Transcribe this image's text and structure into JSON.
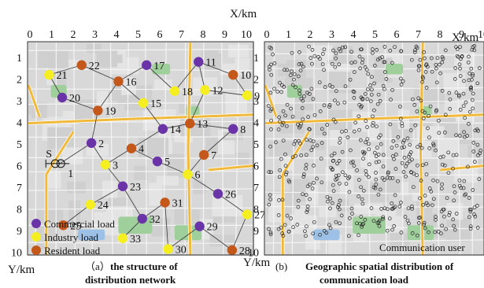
{
  "colors": {
    "commercial": "#6a34a8",
    "industry": "#f5ee21",
    "resident": "#c4571a",
    "road": "#f0b93a",
    "map_bg": "#d8d8d8",
    "block": "#e4e4e4",
    "park": "#9fcf9a",
    "water": "#9cc0e6"
  },
  "panel_a": {
    "x_axis_label": "X/km",
    "y_axis_label": "Y/km",
    "x_ticks": [
      "0",
      "1",
      "2",
      "3",
      "4",
      "5",
      "6",
      "7",
      "8",
      "9",
      "10"
    ],
    "y_ticks": [
      "1",
      "2",
      "3",
      "4",
      "5",
      "6",
      "7",
      "8",
      "9",
      "10"
    ],
    "source_label": "S",
    "legend": [
      {
        "type": "commercial",
        "label": "Commercial load"
      },
      {
        "type": "industry",
        "label": "Industry load"
      },
      {
        "type": "resident",
        "label": "Resident load"
      }
    ],
    "caption_prefix": "（a）",
    "caption_line1": "the structure of",
    "caption_line2": "distribution network",
    "nodes": [
      {
        "id": "1",
        "x": 1.1,
        "y": 5.45,
        "type": "source"
      },
      {
        "id": "2",
        "x": 2.55,
        "y": 4.5,
        "type": "commercial"
      },
      {
        "id": "3",
        "x": 3.2,
        "y": 5.5,
        "type": "industry"
      },
      {
        "id": "4",
        "x": 4.4,
        "y": 4.75,
        "type": "resident"
      },
      {
        "id": "5",
        "x": 5.6,
        "y": 5.35,
        "type": "commercial"
      },
      {
        "id": "6",
        "x": 7.0,
        "y": 5.95,
        "type": "industry"
      },
      {
        "id": "7",
        "x": 7.75,
        "y": 5.05,
        "type": "resident"
      },
      {
        "id": "8",
        "x": 9.1,
        "y": 3.85,
        "type": "commercial"
      },
      {
        "id": "9",
        "x": 9.75,
        "y": 2.3,
        "type": "industry"
      },
      {
        "id": "10",
        "x": 9.1,
        "y": 1.35,
        "type": "resident"
      },
      {
        "id": "11",
        "x": 7.5,
        "y": 0.75,
        "type": "commercial"
      },
      {
        "id": "12",
        "x": 7.8,
        "y": 2.05,
        "type": "industry"
      },
      {
        "id": "13",
        "x": 7.1,
        "y": 3.6,
        "type": "resident"
      },
      {
        "id": "14",
        "x": 5.85,
        "y": 3.85,
        "type": "commercial"
      },
      {
        "id": "15",
        "x": 4.95,
        "y": 2.65,
        "type": "industry"
      },
      {
        "id": "16",
        "x": 3.8,
        "y": 1.65,
        "type": "resident"
      },
      {
        "id": "17",
        "x": 5.1,
        "y": 0.9,
        "type": "commercial"
      },
      {
        "id": "18",
        "x": 6.4,
        "y": 2.1,
        "type": "industry"
      },
      {
        "id": "19",
        "x": 2.85,
        "y": 3.0,
        "type": "resident"
      },
      {
        "id": "20",
        "x": 1.2,
        "y": 2.4,
        "type": "commercial"
      },
      {
        "id": "21",
        "x": 0.6,
        "y": 1.35,
        "type": "industry"
      },
      {
        "id": "22",
        "x": 2.1,
        "y": 0.9,
        "type": "resident"
      },
      {
        "id": "23",
        "x": 4.0,
        "y": 6.5,
        "type": "commercial"
      },
      {
        "id": "24",
        "x": 2.5,
        "y": 7.35,
        "type": "industry"
      },
      {
        "id": "25",
        "x": 1.25,
        "y": 8.3,
        "type": "resident"
      },
      {
        "id": "26",
        "x": 8.4,
        "y": 6.85,
        "type": "commercial"
      },
      {
        "id": "27",
        "x": 9.75,
        "y": 7.8,
        "type": "industry"
      },
      {
        "id": "28",
        "x": 9.05,
        "y": 9.45,
        "type": "resident"
      },
      {
        "id": "29",
        "x": 7.55,
        "y": 8.35,
        "type": "commercial"
      },
      {
        "id": "30",
        "x": 6.1,
        "y": 9.4,
        "type": "industry"
      },
      {
        "id": "31",
        "x": 5.95,
        "y": 7.25,
        "type": "resident"
      },
      {
        "id": "32",
        "x": 4.9,
        "y": 8.0,
        "type": "commercial"
      },
      {
        "id": "33",
        "x": 4.0,
        "y": 8.9,
        "type": "industry"
      }
    ],
    "edges": [
      [
        "1",
        "2"
      ],
      [
        "2",
        "3"
      ],
      [
        "2",
        "19"
      ],
      [
        "19",
        "20"
      ],
      [
        "20",
        "21"
      ],
      [
        "21",
        "22"
      ],
      [
        "19",
        "16"
      ],
      [
        "16",
        "22"
      ],
      [
        "16",
        "17"
      ],
      [
        "17",
        "18"
      ],
      [
        "16",
        "15"
      ],
      [
        "15",
        "14"
      ],
      [
        "14",
        "4"
      ],
      [
        "14",
        "13"
      ],
      [
        "13",
        "12"
      ],
      [
        "12",
        "11"
      ],
      [
        "11",
        "10"
      ],
      [
        "12",
        "9"
      ],
      [
        "10",
        "9"
      ],
      [
        "13",
        "8"
      ],
      [
        "8",
        "7"
      ],
      [
        "7",
        "6"
      ],
      [
        "6",
        "5"
      ],
      [
        "5",
        "4"
      ],
      [
        "4",
        "3"
      ],
      [
        "3",
        "23"
      ],
      [
        "23",
        "24"
      ],
      [
        "24",
        "25"
      ],
      [
        "6",
        "26"
      ],
      [
        "26",
        "27"
      ],
      [
        "27",
        "28"
      ],
      [
        "28",
        "29"
      ],
      [
        "29",
        "30"
      ],
      [
        "30",
        "31"
      ],
      [
        "31",
        "32"
      ],
      [
        "32",
        "33"
      ],
      [
        "32",
        "23"
      ],
      [
        "11",
        "18"
      ]
    ]
  },
  "panel_b": {
    "x_axis_label": "X/km",
    "y_axis_label": "Y/km",
    "x_ticks": [
      "0",
      "1",
      "2",
      "3",
      "4",
      "5",
      "6",
      "7",
      "8",
      "9",
      "10"
    ],
    "y_ticks": [
      "1",
      "2",
      "3",
      "4",
      "5",
      "6",
      "7",
      "8",
      "9",
      "10"
    ],
    "legend_label": "Communication user",
    "caption_prefix": "(b)",
    "caption_line1": "Geographic spatial distribution of",
    "caption_line2": "communication load"
  }
}
